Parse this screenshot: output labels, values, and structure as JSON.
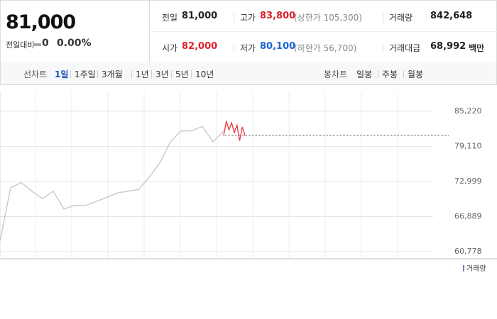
{
  "quote": {
    "price": "81,000",
    "change_label": "전일대비",
    "change": "0",
    "change_rate": "0.00%"
  },
  "stats": [
    {
      "label": "전일",
      "value": "81,000",
      "color": "#222222"
    },
    {
      "label": "고가",
      "value": "83,800",
      "note": "(상한가 105,300)",
      "color": "#e0202d"
    },
    {
      "label": "거래량",
      "value": "842,648",
      "color": "#222222"
    },
    {
      "label": "시가",
      "value": "82,000",
      "color": "#e0202d"
    },
    {
      "label": "저가",
      "value": "80,100",
      "note": "(하한가 56,700)",
      "color": "#1c62d6"
    },
    {
      "label": "거래대금",
      "value": "68,992",
      "unit": "백만",
      "color": "#222222"
    }
  ],
  "tabs": {
    "line_label": "선차트",
    "line": [
      "1일",
      "1주일",
      "3개월",
      "1년",
      "3년",
      "5년",
      "10년"
    ],
    "selected": 0,
    "candle_label": "봉차트",
    "candle": [
      "일봉",
      "주봉",
      "월봉"
    ]
  },
  "chart": {
    "type": "line",
    "ylim": [
      60778,
      85220
    ],
    "yticks": [
      {
        "value": 85220,
        "label": "85,220"
      },
      {
        "value": 79110,
        "label": "79,110"
      },
      {
        "value": 72999,
        "label": "72,999"
      },
      {
        "value": 66889,
        "label": "66,889"
      },
      {
        "value": 60778,
        "label": "60,778"
      }
    ],
    "reference": 81000,
    "series": [
      {
        "color": "#c8c8c8",
        "values": [
          62600,
          71900,
          72800,
          71300,
          70000,
          71300,
          68200,
          68800,
          68800,
          69500,
          70200,
          71000,
          71300,
          71600,
          73700,
          76200,
          79900,
          81800,
          81800,
          82600,
          79900,
          81800
        ]
      },
      {
        "color": "#e8414a",
        "values": [
          81000,
          83500,
          82000,
          83200,
          81500,
          82800,
          80100,
          82500,
          81000
        ]
      }
    ],
    "volume_label": "거래량"
  }
}
